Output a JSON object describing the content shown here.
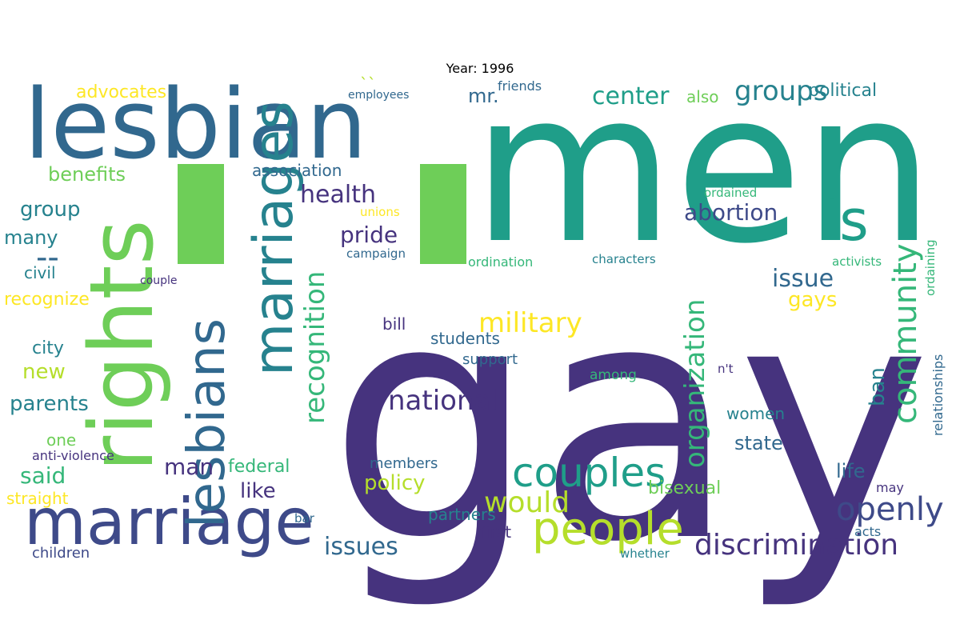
{
  "title": "Year: 1996",
  "palette": {
    "dark_purple": "#46337e",
    "indigo": "#3e4a89",
    "blue": "#31688e",
    "teal": "#26828e",
    "green_teal": "#1f9e89",
    "green": "#35b779",
    "light_green": "#6ece58",
    "lime": "#b5de2b",
    "yellow": "#fde725"
  },
  "words": [
    {
      "text": "gay",
      "color": "#46337e"
    },
    {
      "text": "men",
      "color": "#1f9e89"
    },
    {
      "text": "lesbian",
      "color": "#31688e"
    },
    {
      "text": "rights",
      "color": "#6ece58"
    },
    {
      "text": "marriage",
      "color": "#3e4a89"
    },
    {
      "text": "marriages",
      "color": "#26828e"
    },
    {
      "text": "lesbians",
      "color": "#31688e"
    },
    {
      "text": "'s",
      "color": "#1f9e89"
    },
    {
      "text": "people",
      "color": "#b5de2b"
    },
    {
      "text": "couples",
      "color": "#1f9e89"
    },
    {
      "text": "community",
      "color": "#35b779"
    },
    {
      "text": "openly",
      "color": "#3e4a89"
    },
    {
      "text": "discrimination",
      "color": "#46337e"
    },
    {
      "text": "recognition",
      "color": "#35b779"
    },
    {
      "text": "organization",
      "color": "#35b779"
    },
    {
      "text": "military",
      "color": "#fde725"
    },
    {
      "text": "national",
      "color": "#46337e"
    },
    {
      "text": "would",
      "color": "#b5de2b"
    },
    {
      "text": "health",
      "color": "#46337e"
    },
    {
      "text": "groups",
      "color": "#26828e"
    },
    {
      "text": "center",
      "color": "#1f9e89"
    },
    {
      "text": "abortion",
      "color": "#3e4a89"
    },
    {
      "text": "issue",
      "color": "#31688e"
    },
    {
      "text": "gays",
      "color": "#fde725"
    },
    {
      "text": "ban",
      "color": "#26828e"
    },
    {
      "text": "issues",
      "color": "#31688e"
    },
    {
      "text": "man",
      "color": "#46337e"
    },
    {
      "text": "said",
      "color": "#35b779"
    },
    {
      "text": "group",
      "color": "#26828e"
    },
    {
      "text": "pride",
      "color": "#46337e"
    },
    {
      "text": "like",
      "color": "#46337e"
    },
    {
      "text": "policy",
      "color": "#b5de2b"
    },
    {
      "text": "bisexual",
      "color": "#6ece58"
    },
    {
      "text": "life",
      "color": "#31688e"
    },
    {
      "text": "new",
      "color": "#b5de2b"
    },
    {
      "text": "parents",
      "color": "#26828e"
    },
    {
      "text": "many",
      "color": "#26828e"
    },
    {
      "text": "benefits",
      "color": "#6ece58"
    },
    {
      "text": "advocates",
      "color": "#fde725"
    },
    {
      "text": "association",
      "color": "#31688e"
    },
    {
      "text": "political",
      "color": "#26828e"
    },
    {
      "text": "mr.",
      "color": "#31688e"
    },
    {
      "text": "also",
      "color": "#6ece58"
    },
    {
      "text": "civil",
      "color": "#26828e"
    },
    {
      "text": "recognize",
      "color": "#fde725"
    },
    {
      "text": "city",
      "color": "#26828e"
    },
    {
      "text": "one",
      "color": "#6ece58"
    },
    {
      "text": "straight",
      "color": "#fde725"
    },
    {
      "text": "federal",
      "color": "#35b779"
    },
    {
      "text": "women",
      "color": "#26828e"
    },
    {
      "text": "state",
      "color": "#31688e"
    },
    {
      "text": "members",
      "color": "#31688e"
    },
    {
      "text": "partners",
      "color": "#26828e"
    },
    {
      "text": "students",
      "color": "#31688e"
    },
    {
      "text": "support",
      "color": "#31688e"
    },
    {
      "text": "bill",
      "color": "#46337e"
    },
    {
      "text": "first",
      "color": "#46337e"
    },
    {
      "text": "children",
      "color": "#3e4a89"
    },
    {
      "text": "relationships",
      "color": "#31688e"
    },
    {
      "text": "ordaining",
      "color": "#35b779"
    },
    {
      "text": "ordination",
      "color": "#35b779"
    },
    {
      "text": "characters",
      "color": "#26828e"
    },
    {
      "text": "activists",
      "color": "#35b779"
    },
    {
      "text": "among",
      "color": "#35b779"
    },
    {
      "text": "campaign",
      "color": "#31688e"
    },
    {
      "text": "unions",
      "color": "#fde725"
    },
    {
      "text": "couple",
      "color": "#46337e"
    },
    {
      "text": "anti-violence",
      "color": "#46337e"
    },
    {
      "text": "ordained",
      "color": "#35b779"
    },
    {
      "text": "employees",
      "color": "#31688e"
    },
    {
      "text": "friends",
      "color": "#31688e"
    },
    {
      "text": "acts",
      "color": "#31688e"
    },
    {
      "text": "whether",
      "color": "#26828e"
    },
    {
      "text": "bar",
      "color": "#31688e"
    },
    {
      "text": "n't",
      "color": "#46337e"
    },
    {
      "text": "may",
      "color": "#46337e"
    },
    {
      "text": "--",
      "color": "#31688e"
    },
    {
      "text": "``",
      "color": "#b5de2b"
    }
  ]
}
